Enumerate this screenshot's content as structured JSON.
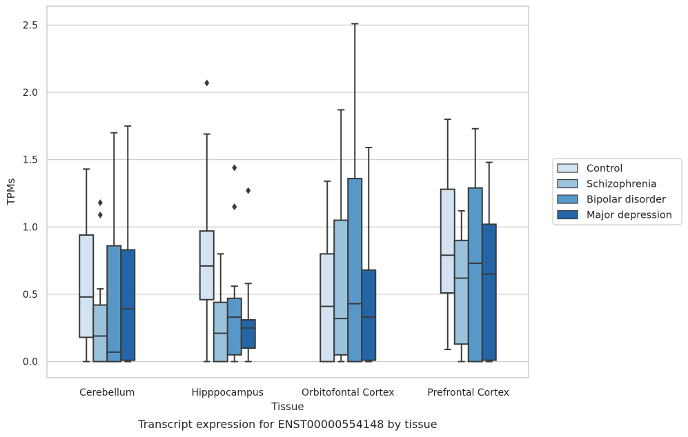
{
  "caption": "Transcript expression for ENST00000554148 by tissue",
  "chart_data": {
    "type": "box",
    "xlabel": "Tissue",
    "ylabel": "TPMs",
    "ylim": [
      -0.12,
      2.64
    ],
    "yticks": [
      "0.0",
      "0.5",
      "1.0",
      "1.5",
      "2.0",
      "2.5"
    ],
    "grid": "horizontal",
    "legend_position": "center-right",
    "categories": [
      "Cerebellum",
      "Hipppocampus",
      "Orbitofontal Cortex",
      "Prefrontal Cortex"
    ],
    "series": [
      {
        "name": "Control",
        "color": "#d3e3f2",
        "boxes": [
          {
            "q1": 0.18,
            "median": 0.48,
            "q3": 0.94,
            "whisker_low": 0.0,
            "whisker_high": 1.43,
            "outliers": []
          },
          {
            "q1": 0.46,
            "median": 0.71,
            "q3": 0.97,
            "whisker_low": 0.0,
            "whisker_high": 1.69,
            "outliers": [
              2.07
            ]
          },
          {
            "q1": 0.0,
            "median": 0.41,
            "q3": 0.8,
            "whisker_low": 0.0,
            "whisker_high": 1.34,
            "outliers": []
          },
          {
            "q1": 0.51,
            "median": 0.79,
            "q3": 1.28,
            "whisker_low": 0.09,
            "whisker_high": 1.8,
            "outliers": []
          }
        ]
      },
      {
        "name": "Schizophrenia",
        "color": "#9ac2dd",
        "boxes": [
          {
            "q1": 0.0,
            "median": 0.19,
            "q3": 0.42,
            "whisker_low": 0.0,
            "whisker_high": 0.54,
            "outliers": [
              1.09,
              1.18
            ]
          },
          {
            "q1": 0.0,
            "median": 0.21,
            "q3": 0.44,
            "whisker_low": 0.0,
            "whisker_high": 0.8,
            "outliers": []
          },
          {
            "q1": 0.05,
            "median": 0.32,
            "q3": 1.05,
            "whisker_low": 0.0,
            "whisker_high": 1.87,
            "outliers": []
          },
          {
            "q1": 0.13,
            "median": 0.62,
            "q3": 0.9,
            "whisker_low": 0.0,
            "whisker_high": 1.12,
            "outliers": []
          }
        ]
      },
      {
        "name": "Bipolar disorder",
        "color": "#5898c9",
        "boxes": [
          {
            "q1": 0.0,
            "median": 0.07,
            "q3": 0.86,
            "whisker_low": 0.0,
            "whisker_high": 1.7,
            "outliers": []
          },
          {
            "q1": 0.05,
            "median": 0.33,
            "q3": 0.47,
            "whisker_low": 0.0,
            "whisker_high": 0.56,
            "outliers": [
              1.15,
              1.44
            ]
          },
          {
            "q1": 0.0,
            "median": 0.43,
            "q3": 1.36,
            "whisker_low": 0.0,
            "whisker_high": 2.51,
            "outliers": []
          },
          {
            "q1": 0.0,
            "median": 0.73,
            "q3": 1.29,
            "whisker_low": 0.0,
            "whisker_high": 1.73,
            "outliers": []
          }
        ]
      },
      {
        "name": "Major depression",
        "color": "#2465a8",
        "boxes": [
          {
            "q1": 0.01,
            "median": 0.39,
            "q3": 0.83,
            "whisker_low": 0.0,
            "whisker_high": 1.75,
            "outliers": []
          },
          {
            "q1": 0.1,
            "median": 0.25,
            "q3": 0.31,
            "whisker_low": 0.0,
            "whisker_high": 0.58,
            "outliers": [
              1.27
            ]
          },
          {
            "q1": 0.01,
            "median": 0.33,
            "q3": 0.68,
            "whisker_low": 0.0,
            "whisker_high": 1.59,
            "outliers": []
          },
          {
            "q1": 0.01,
            "median": 0.65,
            "q3": 1.02,
            "whisker_low": 0.0,
            "whisker_high": 1.48,
            "outliers": []
          }
        ]
      }
    ]
  }
}
